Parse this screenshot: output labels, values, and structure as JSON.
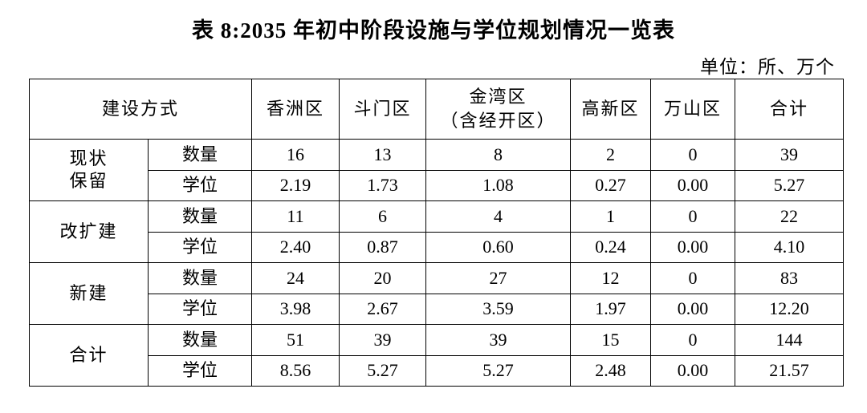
{
  "title": "表 8:2035 年初中阶段设施与学位规划情况一览表",
  "unit": "单位：所、万个",
  "table": {
    "corner": "建设方式",
    "columns": [
      [
        "香洲区"
      ],
      [
        "斗门区"
      ],
      [
        "金湾区",
        "（含经开区）"
      ],
      [
        "高新区"
      ],
      [
        "万山区"
      ],
      [
        "合计"
      ]
    ],
    "groups": [
      {
        "label": [
          "现状",
          "保留"
        ],
        "rows": [
          {
            "metric": "数量",
            "values": [
              "16",
              "13",
              "8",
              "2",
              "0",
              "39"
            ]
          },
          {
            "metric": "学位",
            "values": [
              "2.19",
              "1.73",
              "1.08",
              "0.27",
              "0.00",
              "5.27"
            ]
          }
        ]
      },
      {
        "label": [
          "改扩建"
        ],
        "rows": [
          {
            "metric": "数量",
            "values": [
              "11",
              "6",
              "4",
              "1",
              "0",
              "22"
            ]
          },
          {
            "metric": "学位",
            "values": [
              "2.40",
              "0.87",
              "0.60",
              "0.24",
              "0.00",
              "4.10"
            ]
          }
        ]
      },
      {
        "label": [
          "新建"
        ],
        "rows": [
          {
            "metric": "数量",
            "values": [
              "24",
              "20",
              "27",
              "12",
              "0",
              "83"
            ]
          },
          {
            "metric": "学位",
            "values": [
              "3.98",
              "2.67",
              "3.59",
              "1.97",
              "0.00",
              "12.20"
            ]
          }
        ]
      },
      {
        "label": [
          "合计"
        ],
        "rows": [
          {
            "metric": "数量",
            "values": [
              "51",
              "39",
              "39",
              "15",
              "0",
              "144"
            ]
          },
          {
            "metric": "学位",
            "values": [
              "8.56",
              "5.27",
              "5.27",
              "2.48",
              "0.00",
              "21.57"
            ]
          }
        ]
      }
    ]
  }
}
